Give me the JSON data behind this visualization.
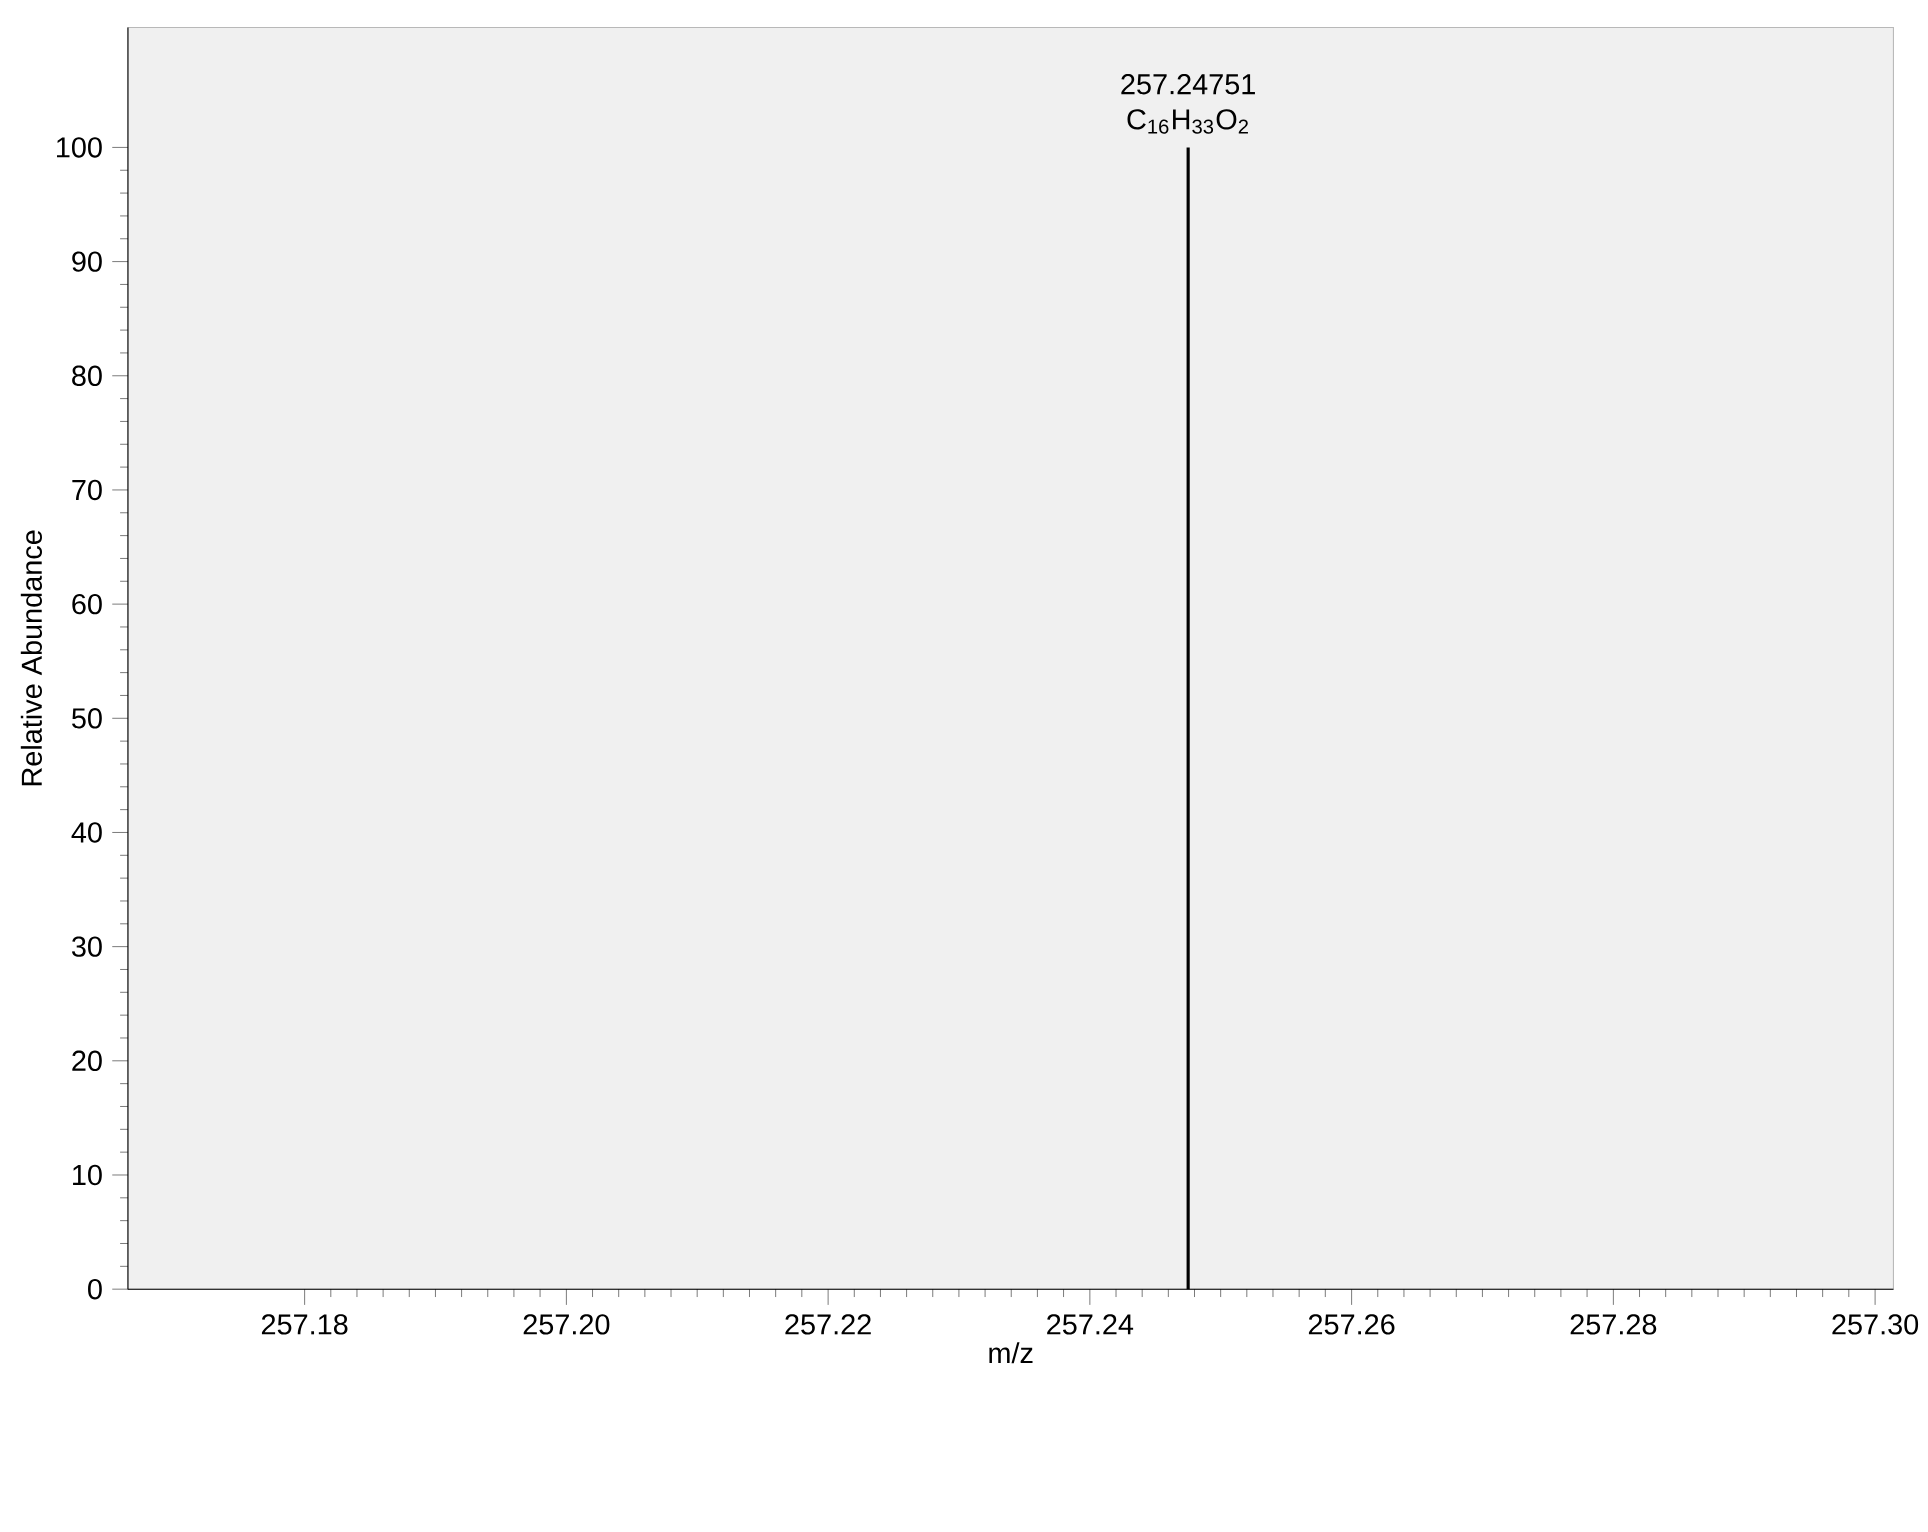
{
  "chart_data": {
    "type": "bar",
    "x": [
      257.24751
    ],
    "values": [
      100
    ],
    "color": "#000000",
    "xlabel": "m/z",
    "ylabel": "Relative Abundance",
    "xlim": [
      257.1665,
      257.3014
    ],
    "ylim": [
      0,
      110.5
    ],
    "xticks": [
      257.18,
      {
        "value": 257.2,
        "label": "257.20"
      },
      257.22,
      257.24,
      257.26,
      257.28,
      {
        "value": 257.3,
        "label": "257.30"
      }
    ],
    "yticks": [
      0,
      10,
      20,
      30,
      40,
      50,
      60,
      70,
      80,
      90,
      100
    ],
    "annotations": [
      {
        "text": "257.24751",
        "x": 257.24751,
        "y": 100
      },
      {
        "text": "C$_{16}$H$_{33}$O$_{2}$",
        "x": 257.24751,
        "y": 100
      }
    ],
    "grid": false
  }
}
